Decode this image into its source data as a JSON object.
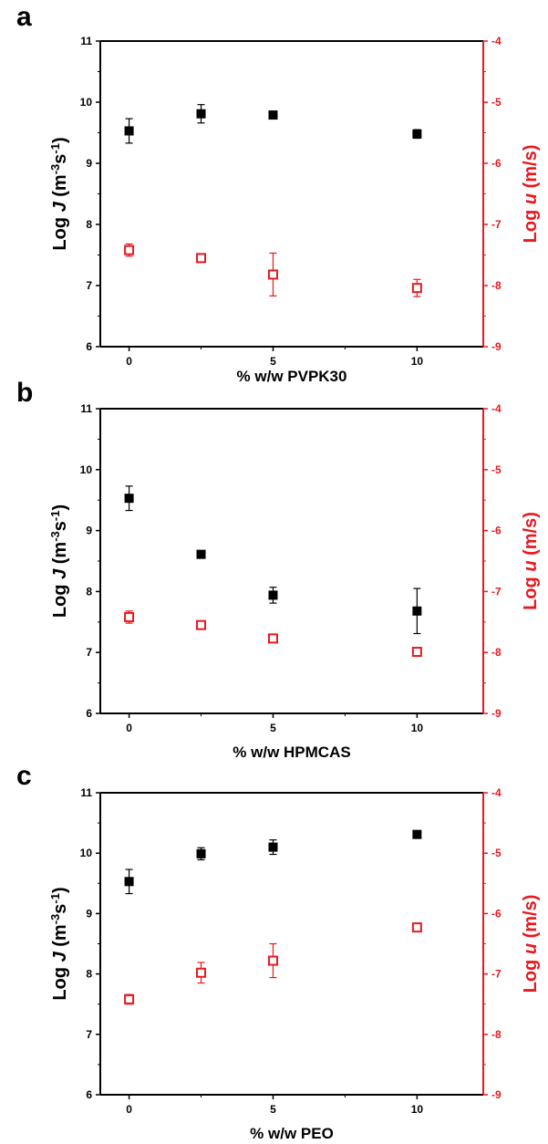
{
  "colors": {
    "left": "#000000",
    "right": "#e8191f"
  },
  "chart_data": [
    {
      "panel": "a",
      "type": "scatter",
      "xlabel": "% w/w  PVPK30",
      "ylabel_left": {
        "pre": "Log ",
        "var": "J",
        "unit": " (m",
        "sup1": "-3",
        "mid": "s",
        "sup2": "-1",
        "end": ")"
      },
      "ylabel_right": {
        "pre": "Log ",
        "var": "u",
        "unit": " (m/s)"
      },
      "x_ticks": [
        0,
        5,
        10
      ],
      "xlim": [
        -1,
        12.3
      ],
      "ylim_left": [
        6,
        11
      ],
      "y_ticks_left": [
        6,
        7,
        8,
        9,
        10,
        11
      ],
      "ylim_right": [
        -9,
        -4
      ],
      "y_ticks_right": [
        -9,
        -8,
        -7,
        -6,
        -5,
        -4
      ],
      "series": [
        {
          "axis": "left",
          "marker": "filled-square",
          "points": [
            {
              "x": 0,
              "y": 9.53,
              "err": 0.2
            },
            {
              "x": 2.5,
              "y": 9.81,
              "err": 0.15
            },
            {
              "x": 5,
              "y": 9.79,
              "err": 0.02
            },
            {
              "x": 10,
              "y": 9.48,
              "err": 0.07
            }
          ]
        },
        {
          "axis": "right",
          "marker": "open-square",
          "points": [
            {
              "x": 0,
              "y": -7.42,
              "err": 0.1
            },
            {
              "x": 2.5,
              "y": -7.55,
              "err": 0.05
            },
            {
              "x": 5,
              "y": -7.82,
              "err": 0.35
            },
            {
              "x": 10,
              "y": -8.04,
              "err": 0.14
            }
          ]
        }
      ]
    },
    {
      "panel": "b",
      "type": "scatter",
      "xlabel": "% w/w  HPMCAS",
      "ylabel_left": {
        "pre": "Log ",
        "var": "J",
        "unit": " (m",
        "sup1": "-3",
        "mid": "s",
        "sup2": "-1",
        "end": ")"
      },
      "ylabel_right": {
        "pre": "Log ",
        "var": "u",
        "unit": " (m/s)"
      },
      "x_ticks": [
        0,
        5,
        10
      ],
      "xlim": [
        -1,
        12.3
      ],
      "ylim_left": [
        6,
        11
      ],
      "y_ticks_left": [
        6,
        7,
        8,
        9,
        10,
        11
      ],
      "ylim_right": [
        -9,
        -4
      ],
      "y_ticks_right": [
        -9,
        -8,
        -7,
        -6,
        -5,
        -4
      ],
      "series": [
        {
          "axis": "left",
          "marker": "filled-square",
          "points": [
            {
              "x": 0,
              "y": 9.53,
              "err": 0.2
            },
            {
              "x": 2.5,
              "y": 8.61,
              "err": 0.02
            },
            {
              "x": 5,
              "y": 7.94,
              "err": 0.13
            },
            {
              "x": 10,
              "y": 7.68,
              "err": 0.37
            }
          ]
        },
        {
          "axis": "right",
          "marker": "open-square",
          "points": [
            {
              "x": 0,
              "y": -7.42,
              "err": 0.1
            },
            {
              "x": 2.5,
              "y": -7.55,
              "err": 0.04
            },
            {
              "x": 5,
              "y": -7.77,
              "err": 0.04
            },
            {
              "x": 10,
              "y": -7.99,
              "err": 0.04
            }
          ]
        }
      ]
    },
    {
      "panel": "c",
      "type": "scatter",
      "xlabel": "% w/w  PEO",
      "ylabel_left": {
        "pre": "Log ",
        "var": "J",
        "unit": " (m",
        "sup1": "-3",
        "mid": "s",
        "sup2": "-1",
        "end": ")"
      },
      "ylabel_right": {
        "pre": "Log ",
        "var": "u",
        "unit": " (m/s)"
      },
      "x_ticks": [
        0,
        5,
        10
      ],
      "xlim": [
        -1,
        12.3
      ],
      "ylim_left": [
        6,
        11
      ],
      "y_ticks_left": [
        6,
        7,
        8,
        9,
        10,
        11
      ],
      "ylim_right": [
        -9,
        -4
      ],
      "y_ticks_right": [
        -9,
        -8,
        -7,
        -6,
        -5,
        -4
      ],
      "series": [
        {
          "axis": "left",
          "marker": "filled-square",
          "points": [
            {
              "x": 0,
              "y": 9.53,
              "err": 0.2
            },
            {
              "x": 2.5,
              "y": 9.99,
              "err": 0.1
            },
            {
              "x": 5,
              "y": 10.1,
              "err": 0.12
            },
            {
              "x": 10,
              "y": 10.31,
              "err": 0.04
            }
          ]
        },
        {
          "axis": "right",
          "marker": "open-square",
          "points": [
            {
              "x": 0,
              "y": -7.42,
              "err": 0.08
            },
            {
              "x": 2.5,
              "y": -6.98,
              "err": 0.17
            },
            {
              "x": 5,
              "y": -6.78,
              "err": 0.28
            },
            {
              "x": 10,
              "y": -6.23,
              "err": 0.05
            }
          ]
        }
      ]
    }
  ]
}
